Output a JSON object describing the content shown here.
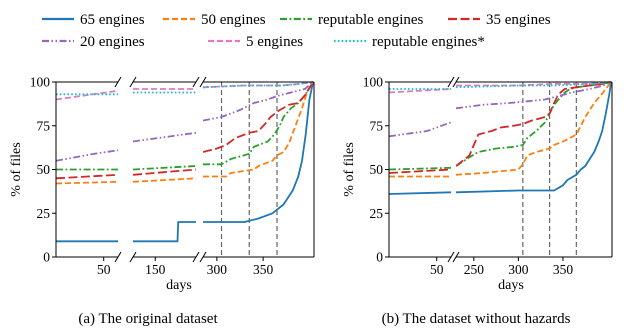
{
  "legend": [
    {
      "label": "65 engines",
      "color": "#1f77b4",
      "dash": "solid"
    },
    {
      "label": "50 engines",
      "color": "#ff7f0e",
      "dash": "dashed"
    },
    {
      "label": "reputable engines",
      "color": "#2ca02c",
      "dash": "dashdot"
    },
    {
      "label": "35 engines",
      "color": "#d62728",
      "dash": "longdash"
    },
    {
      "label": "20 engines",
      "color": "#9467bd",
      "dash": "dashdotdot"
    },
    {
      "label": "5 engines",
      "color": "#e377c2",
      "dash": "dashed"
    },
    {
      "label": "reputable engines*",
      "color": "#17becf",
      "dash": "dotted"
    }
  ],
  "chart_data": [
    {
      "type": "line",
      "caption": "(a) The original dataset",
      "xlabel": "days",
      "ylabel": "% of files",
      "ylim": [
        0,
        100
      ],
      "yticks": [
        0,
        25,
        50,
        75,
        100
      ],
      "segments": [
        {
          "xlim": [
            0,
            65
          ],
          "xticks": [
            50
          ]
        },
        {
          "xlim": [
            120,
            205
          ],
          "xticks": [
            150
          ]
        },
        {
          "xlim": [
            285,
            405
          ],
          "xticks": [
            300,
            350
          ]
        }
      ],
      "vlines": [
        305,
        335,
        365
      ],
      "series": [
        {
          "name": "65 engines",
          "points": [
            [
              0,
              9
            ],
            [
              65,
              9
            ],
            [
              120,
              9
            ],
            [
              180,
              9
            ],
            [
              181,
              20
            ],
            [
              205,
              20
            ],
            [
              285,
              20
            ],
            [
              330,
              20
            ],
            [
              345,
              22
            ],
            [
              360,
              25
            ],
            [
              372,
              30
            ],
            [
              382,
              38
            ],
            [
              388,
              46
            ],
            [
              392,
              55
            ],
            [
              396,
              70
            ],
            [
              400,
              90
            ],
            [
              404,
              100
            ]
          ]
        },
        {
          "name": "50 engines",
          "points": [
            [
              0,
              42
            ],
            [
              65,
              43
            ],
            [
              120,
              43
            ],
            [
              205,
              45
            ],
            [
              285,
              46
            ],
            [
              310,
              46
            ],
            [
              315,
              48
            ],
            [
              340,
              50
            ],
            [
              345,
              52
            ],
            [
              360,
              55
            ],
            [
              365,
              58
            ],
            [
              372,
              60
            ],
            [
              378,
              65
            ],
            [
              385,
              75
            ],
            [
              392,
              85
            ],
            [
              398,
              95
            ],
            [
              404,
              100
            ]
          ]
        },
        {
          "name": "reputable engines",
          "points": [
            [
              0,
              50
            ],
            [
              65,
              50
            ],
            [
              120,
              50
            ],
            [
              205,
              52
            ],
            [
              285,
              53
            ],
            [
              305,
              53
            ],
            [
              315,
              56
            ],
            [
              335,
              59
            ],
            [
              340,
              63
            ],
            [
              355,
              66
            ],
            [
              362,
              70
            ],
            [
              368,
              75
            ],
            [
              372,
              80
            ],
            [
              380,
              85
            ],
            [
              388,
              88
            ],
            [
              396,
              93
            ],
            [
              404,
              100
            ]
          ]
        },
        {
          "name": "35 engines",
          "points": [
            [
              0,
              45
            ],
            [
              65,
              47
            ],
            [
              120,
              47
            ],
            [
              205,
              50
            ],
            [
              285,
              60
            ],
            [
              300,
              62
            ],
            [
              310,
              64
            ],
            [
              320,
              68
            ],
            [
              335,
              71
            ],
            [
              345,
              72
            ],
            [
              352,
              76
            ],
            [
              358,
              80
            ],
            [
              368,
              84
            ],
            [
              378,
              87
            ],
            [
              388,
              88
            ],
            [
              396,
              93
            ],
            [
              404,
              100
            ]
          ]
        },
        {
          "name": "20 engines",
          "points": [
            [
              0,
              55
            ],
            [
              40,
              59
            ],
            [
              65,
              61
            ],
            [
              120,
              66
            ],
            [
              205,
              71
            ],
            [
              285,
              78
            ],
            [
              305,
              80
            ],
            [
              325,
              84
            ],
            [
              340,
              88
            ],
            [
              355,
              90
            ],
            [
              365,
              92
            ],
            [
              380,
              94
            ],
            [
              395,
              96
            ],
            [
              404,
              100
            ]
          ]
        },
        {
          "name": "5 engines",
          "points": [
            [
              0,
              90
            ],
            [
              65,
              95
            ],
            [
              120,
              96
            ],
            [
              205,
              96
            ],
            [
              285,
              97
            ],
            [
              330,
              98
            ],
            [
              370,
              98
            ],
            [
              390,
              99
            ],
            [
              404,
              100
            ]
          ]
        },
        {
          "name": "reputable engines*",
          "points": [
            [
              0,
              93
            ],
            [
              65,
              93
            ],
            [
              120,
              94
            ],
            [
              205,
              94
            ],
            [
              285,
              97
            ],
            [
              330,
              98
            ],
            [
              370,
              98
            ],
            [
              390,
              99
            ],
            [
              404,
              100
            ]
          ]
        }
      ]
    },
    {
      "type": "line",
      "caption": "(b) The dataset without hazards",
      "xlabel": "days",
      "ylabel": "% of files",
      "ylim": [
        0,
        100
      ],
      "yticks": [
        0,
        25,
        50,
        75,
        100
      ],
      "segments": [
        {
          "xlim": [
            0,
            65
          ],
          "xticks": [
            50
          ]
        },
        {
          "xlim": [
            230,
            405
          ],
          "xticks": [
            250,
            300,
            350
          ]
        }
      ],
      "vlines": [
        305,
        335,
        365
      ],
      "series": [
        {
          "name": "65 engines",
          "points": [
            [
              0,
              36
            ],
            [
              65,
              37
            ],
            [
              230,
              37
            ],
            [
              300,
              38
            ],
            [
              340,
              38
            ],
            [
              350,
              41
            ],
            [
              355,
              44
            ],
            [
              365,
              47
            ],
            [
              370,
              50
            ],
            [
              375,
              52
            ],
            [
              380,
              56
            ],
            [
              385,
              60
            ],
            [
              390,
              66
            ],
            [
              394,
              72
            ],
            [
              398,
              82
            ],
            [
              402,
              93
            ],
            [
              404,
              100
            ]
          ]
        },
        {
          "name": "50 engines",
          "points": [
            [
              0,
              46
            ],
            [
              65,
              46
            ],
            [
              230,
              47
            ],
            [
              260,
              48
            ],
            [
              300,
              50
            ],
            [
              305,
              53
            ],
            [
              310,
              58
            ],
            [
              320,
              60
            ],
            [
              335,
              62
            ],
            [
              340,
              64
            ],
            [
              350,
              66
            ],
            [
              358,
              68
            ],
            [
              365,
              70
            ],
            [
              368,
              73
            ],
            [
              375,
              80
            ],
            [
              385,
              88
            ],
            [
              395,
              94
            ],
            [
              404,
              100
            ]
          ]
        },
        {
          "name": "reputable engines",
          "points": [
            [
              0,
              50
            ],
            [
              65,
              51
            ],
            [
              230,
              52
            ],
            [
              245,
              57
            ],
            [
              255,
              60
            ],
            [
              275,
              62
            ],
            [
              295,
              63
            ],
            [
              305,
              64
            ],
            [
              310,
              68
            ],
            [
              320,
              72
            ],
            [
              330,
              77
            ],
            [
              335,
              82
            ],
            [
              340,
              87
            ],
            [
              345,
              90
            ],
            [
              352,
              94
            ],
            [
              358,
              96
            ],
            [
              365,
              97
            ],
            [
              380,
              98
            ],
            [
              395,
              99
            ],
            [
              404,
              100
            ]
          ]
        },
        {
          "name": "35 engines",
          "points": [
            [
              0,
              48
            ],
            [
              65,
              50
            ],
            [
              230,
              52
            ],
            [
              245,
              58
            ],
            [
              255,
              70
            ],
            [
              270,
              72
            ],
            [
              280,
              74
            ],
            [
              295,
              75
            ],
            [
              305,
              76
            ],
            [
              315,
              78
            ],
            [
              330,
              80
            ],
            [
              335,
              82
            ],
            [
              340,
              88
            ],
            [
              345,
              93
            ],
            [
              352,
              96
            ],
            [
              365,
              97
            ],
            [
              380,
              98
            ],
            [
              395,
              99
            ],
            [
              404,
              100
            ]
          ]
        },
        {
          "name": "20 engines",
          "points": [
            [
              0,
              69
            ],
            [
              40,
              72
            ],
            [
              65,
              77
            ],
            [
              230,
              85
            ],
            [
              260,
              87
            ],
            [
              290,
              88
            ],
            [
              310,
              89
            ],
            [
              330,
              90
            ],
            [
              345,
              92
            ],
            [
              360,
              94
            ],
            [
              380,
              96
            ],
            [
              395,
              98
            ],
            [
              404,
              100
            ]
          ]
        },
        {
          "name": "5 engines",
          "points": [
            [
              0,
              94
            ],
            [
              65,
              96
            ],
            [
              230,
              98
            ],
            [
              300,
              98
            ],
            [
              340,
              99
            ],
            [
              380,
              99
            ],
            [
              404,
              100
            ]
          ]
        },
        {
          "name": "reputable engines*",
          "points": [
            [
              0,
              96
            ],
            [
              65,
              96
            ],
            [
              230,
              97
            ],
            [
              300,
              98
            ],
            [
              340,
              98
            ],
            [
              380,
              99
            ],
            [
              404,
              100
            ]
          ]
        }
      ]
    }
  ]
}
